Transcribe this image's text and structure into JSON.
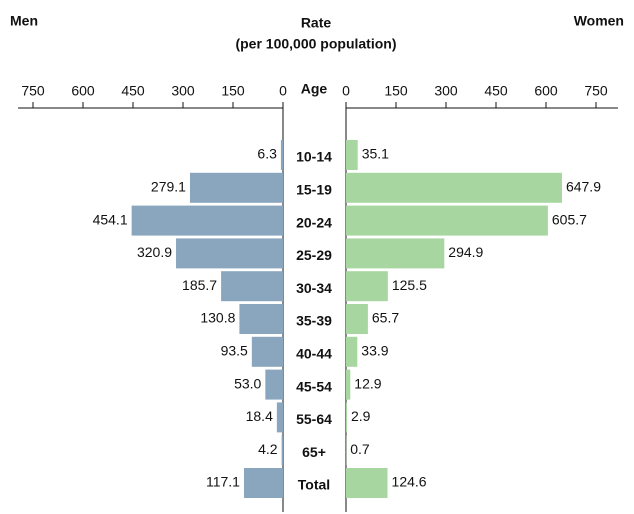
{
  "chart_data": {
    "type": "butterfly",
    "title": "Rate",
    "subtitle": "(per 100,000 population)",
    "category_label": "Age",
    "categories": [
      "10-14",
      "15-19",
      "20-24",
      "25-29",
      "30-34",
      "35-39",
      "40-44",
      "45-54",
      "55-64",
      "65+",
      "Total"
    ],
    "series": [
      {
        "name": "Men",
        "color": "#8aa6be",
        "values": [
          6.3,
          279.1,
          454.1,
          320.9,
          185.7,
          130.8,
          93.5,
          53.0,
          18.4,
          4.2,
          117.1
        ],
        "value_labels": [
          "6.3",
          "279.1",
          "454.1",
          "320.9",
          "185.7",
          "130.8",
          "93.5",
          "53.0",
          "18.4",
          "4.2",
          "117.1"
        ]
      },
      {
        "name": "Women",
        "color": "#a8d6a0",
        "values": [
          35.1,
          647.9,
          605.7,
          294.9,
          125.5,
          65.7,
          33.9,
          12.9,
          2.9,
          0.7,
          124.6
        ]
      }
    ],
    "xlim": [
      0,
      750
    ],
    "xticks": [
      0,
      150,
      300,
      450,
      600,
      750
    ]
  }
}
